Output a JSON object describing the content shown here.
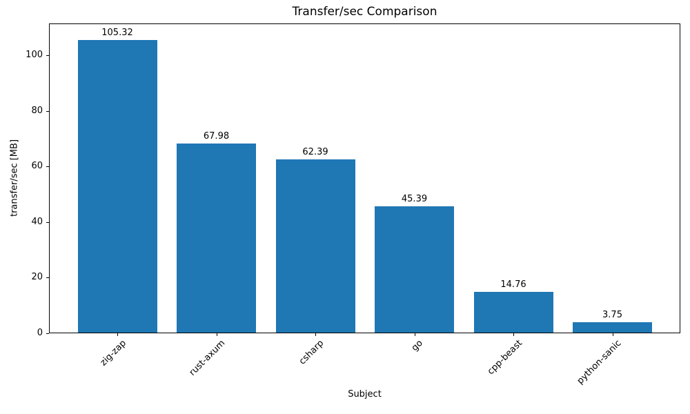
{
  "chart_data": {
    "type": "bar",
    "title": "Transfer/sec Comparison",
    "xlabel": "Subject",
    "ylabel": "transfer/sec [MB]",
    "categories": [
      "zig-zap",
      "rust-axum",
      "csharp",
      "go",
      "cpp-beast",
      "python-sanic"
    ],
    "values": [
      105.32,
      67.98,
      62.39,
      45.39,
      14.76,
      3.75
    ],
    "value_labels": [
      "105.32",
      "67.98",
      "62.39",
      "45.39",
      "14.76",
      "3.75"
    ],
    "bar_color": "#1f77b4",
    "ylim": [
      0,
      111.4
    ],
    "yticks": [
      0,
      20,
      40,
      60,
      80,
      100
    ],
    "x_tick_rotation_deg": 45,
    "grid": false,
    "legend": "none",
    "background_color": "#ffffff",
    "frame_color": "#000000",
    "text_color": "#000000"
  }
}
